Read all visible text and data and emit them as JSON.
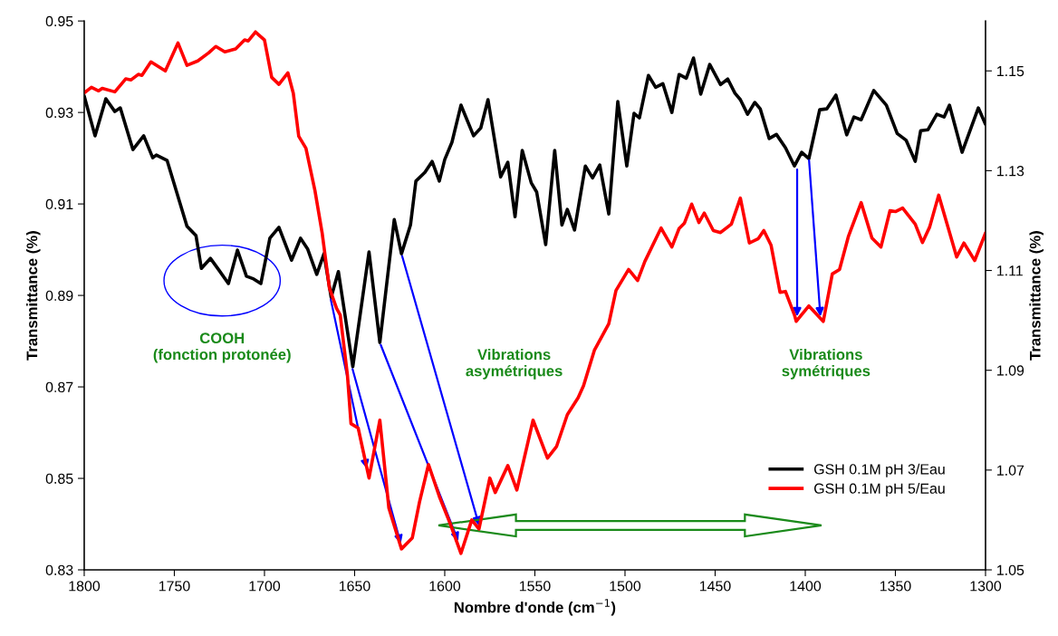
{
  "chart_data": {
    "type": "line",
    "xlabel": "Nombre d'onde (cm$^{−1}$)",
    "ylabel": "Transmittance (%)",
    "y2label": "Transmittance (%)",
    "xlim": [
      1800,
      1300
    ],
    "xticks": [
      1800,
      1750,
      1700,
      1650,
      1600,
      1550,
      1500,
      1450,
      1400,
      1350,
      1300
    ],
    "ylim": [
      0.83,
      0.95
    ],
    "yticks": [
      0.83,
      0.85,
      0.87,
      0.89,
      0.91,
      0.93,
      0.95
    ],
    "y2lim": [
      1.05,
      1.16
    ],
    "y2ticks": [
      1.05,
      1.07,
      1.09,
      1.11,
      1.13,
      1.15
    ],
    "grid": false,
    "legend": "bottom right",
    "marker": "none",
    "line_style": "solid",
    "annotations": [
      "COOH\n(fonction protonée)",
      "Vibrations\nasymétriques",
      "Vibrations\nsymétriques"
    ],
    "series": [
      {
        "name": "GSH 0.1M pH 3/Eau",
        "color": "#000000",
        "axis": "y",
        "x": [
          1800,
          1794,
          1788,
          1783,
          1780,
          1773,
          1767,
          1762,
          1760,
          1754,
          1743,
          1738,
          1735,
          1730,
          1725,
          1720,
          1715,
          1710,
          1706,
          1702,
          1697,
          1692,
          1685,
          1680,
          1676,
          1671,
          1667,
          1663,
          1659,
          1651,
          1642,
          1636,
          1628,
          1624,
          1619,
          1616,
          1611,
          1607,
          1603,
          1600,
          1596,
          1591,
          1584,
          1580,
          1576,
          1569,
          1565,
          1561,
          1557,
          1552,
          1549,
          1544,
          1539,
          1535,
          1532,
          1528,
          1522,
          1518,
          1514,
          1509,
          1504,
          1499,
          1495,
          1492,
          1487,
          1483,
          1479,
          1474,
          1470,
          1466,
          1462,
          1458,
          1453,
          1447,
          1443,
          1439,
          1436,
          1432,
          1428,
          1425,
          1420,
          1416,
          1411,
          1406,
          1402,
          1398,
          1392,
          1388,
          1383,
          1377,
          1373,
          1369,
          1362,
          1355,
          1349,
          1344,
          1339,
          1336,
          1332,
          1327,
          1323,
          1320,
          1313,
          1304,
          1300
        ],
        "values": [
          0.9336,
          0.9249,
          0.933,
          0.9302,
          0.931,
          0.9219,
          0.9249,
          0.9201,
          0.9207,
          0.9195,
          0.9051,
          0.9031,
          0.8959,
          0.8981,
          0.8954,
          0.8926,
          0.8999,
          0.8942,
          0.8936,
          0.8926,
          0.9025,
          0.9049,
          0.8977,
          0.9025,
          0.9001,
          0.8946,
          0.8991,
          0.8896,
          0.8952,
          0.8744,
          0.8995,
          0.8797,
          0.9066,
          0.8991,
          0.9054,
          0.915,
          0.9169,
          0.9193,
          0.915,
          0.9197,
          0.9235,
          0.9316,
          0.9249,
          0.9266,
          0.9328,
          0.9159,
          0.9191,
          0.9072,
          0.9217,
          0.9146,
          0.9126,
          0.9011,
          0.9217,
          0.9054,
          0.9088,
          0.9043,
          0.9183,
          0.9157,
          0.9185,
          0.9078,
          0.9324,
          0.9183,
          0.9298,
          0.9288,
          0.9381,
          0.9355,
          0.9363,
          0.93,
          0.9383,
          0.9375,
          0.9419,
          0.934,
          0.9405,
          0.9361,
          0.9373,
          0.9342,
          0.9328,
          0.9296,
          0.9322,
          0.9308,
          0.9243,
          0.9252,
          0.9223,
          0.9183,
          0.9213,
          0.9199,
          0.9306,
          0.9308,
          0.9338,
          0.9251,
          0.929,
          0.9284,
          0.9348,
          0.9316,
          0.9254,
          0.9239,
          0.9193,
          0.926,
          0.9262,
          0.9296,
          0.929,
          0.9316,
          0.9213,
          0.931,
          0.9274
        ]
      },
      {
        "name": "GSH 0.1M pH 5/Eau",
        "color": "#ff0000",
        "axis": "y2",
        "x": [
          1800,
          1796,
          1792,
          1790,
          1783,
          1777,
          1774,
          1770,
          1768,
          1763,
          1755,
          1748,
          1743,
          1737,
          1731,
          1727,
          1722,
          1716,
          1711,
          1709,
          1705,
          1700,
          1696,
          1692,
          1687,
          1684,
          1681,
          1677,
          1672,
          1668,
          1664,
          1660,
          1658,
          1654,
          1652,
          1648,
          1642,
          1636,
          1631,
          1624,
          1618,
          1614,
          1609,
          1603,
          1597,
          1591,
          1585,
          1581,
          1575,
          1572,
          1565,
          1560,
          1551,
          1543,
          1538,
          1532,
          1526,
          1523,
          1517,
          1509,
          1505,
          1498,
          1493,
          1489,
          1480,
          1474,
          1470,
          1467,
          1463,
          1459,
          1456,
          1451,
          1447,
          1441,
          1436,
          1431,
          1426,
          1423,
          1419,
          1414,
          1411,
          1406,
          1405,
          1398,
          1390,
          1385,
          1381,
          1376,
          1369,
          1363,
          1358,
          1353,
          1350,
          1346,
          1339,
          1335,
          1331,
          1326,
          1316,
          1312,
          1306,
          1300
        ],
        "values": [
          1.1456,
          1.1467,
          1.146,
          1.1465,
          1.1458,
          1.1484,
          1.1482,
          1.1493,
          1.1491,
          1.1518,
          1.15,
          1.1556,
          1.1511,
          1.152,
          1.1536,
          1.1549,
          1.1538,
          1.1544,
          1.1562,
          1.156,
          1.1578,
          1.1562,
          1.1487,
          1.1473,
          1.1496,
          1.1455,
          1.1369,
          1.1345,
          1.126,
          1.1175,
          1.1065,
          1.1024,
          1.1011,
          1.0891,
          1.0793,
          1.0784,
          1.0684,
          1.08,
          1.0624,
          1.0542,
          1.0564,
          1.0636,
          1.0711,
          1.0647,
          1.0593,
          1.0533,
          1.06,
          1.0582,
          1.0684,
          1.0655,
          1.0709,
          1.066,
          1.08,
          1.0724,
          1.0747,
          1.0811,
          1.0845,
          1.0869,
          1.094,
          1.0993,
          1.106,
          1.1102,
          1.108,
          1.1118,
          1.1185,
          1.1147,
          1.1184,
          1.1195,
          1.1233,
          1.1196,
          1.1215,
          1.118,
          1.1176,
          1.1193,
          1.1245,
          1.1155,
          1.1164,
          1.118,
          1.1151,
          1.1056,
          1.1058,
          1.1011,
          1.0998,
          1.1029,
          1.0998,
          1.1093,
          1.1102,
          1.1169,
          1.1236,
          1.1165,
          1.1147,
          1.122,
          1.1218,
          1.1225,
          1.1193,
          1.1156,
          1.1187,
          1.1251,
          1.1127,
          1.1155,
          1.112,
          1.1175
        ]
      }
    ]
  }
}
